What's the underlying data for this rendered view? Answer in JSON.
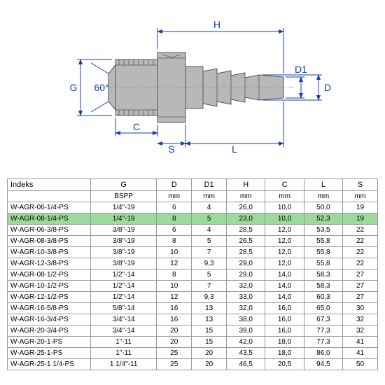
{
  "diagram": {
    "dims": {
      "G": "G",
      "H": "H",
      "C": "C",
      "S": "S",
      "L": "L",
      "D": "D",
      "D1": "D1",
      "angle": "60°"
    },
    "colors": {
      "dim": "#1a3db0",
      "part": "#b8b8b8",
      "partStroke": "#555555"
    }
  },
  "table": {
    "headers": [
      "Indeks",
      "G",
      "D",
      "D1",
      "H",
      "C",
      "L",
      "S"
    ],
    "units": [
      "",
      "BSPP",
      "mm",
      "mm",
      "mm",
      "mm",
      "mm",
      "mm"
    ],
    "highlight_index": 1,
    "rows": [
      [
        "W-AGR-06-1/4-PS",
        "1/4\"-19",
        "6",
        "4",
        "26,0",
        "10,0",
        "50,0",
        "19"
      ],
      [
        "W-AGR-08-1/4-PS",
        "1/4\"-19",
        "8",
        "5",
        "23,0",
        "10,0",
        "52,3",
        "19"
      ],
      [
        "W-AGR-06-3/8-PS",
        "3/8\"-19",
        "6",
        "4",
        "28,5",
        "12,0",
        "53,5",
        "22"
      ],
      [
        "W-AGR-08-3/8-PS",
        "3/8\"-19",
        "8",
        "5",
        "26,5",
        "12,0",
        "55,8",
        "22"
      ],
      [
        "W-AGR-10-3/8-PS",
        "3/8\"-19",
        "10",
        "7",
        "28,5",
        "12,0",
        "55,8",
        "22"
      ],
      [
        "W-AGR-12-3/8-PS",
        "3/8\"-19",
        "12",
        "9,3",
        "29,0",
        "12,0",
        "55,8",
        "22"
      ],
      [
        "W-AGR-08-1/2-PS",
        "1/2\"-14",
        "8",
        "5",
        "29,0",
        "14,0",
        "58,3",
        "27"
      ],
      [
        "W-AGR-10-1/2-PS",
        "1/2\"-14",
        "10",
        "7",
        "32,0",
        "14,0",
        "58,3",
        "27"
      ],
      [
        "W-AGR-12-1/2-PS",
        "1/2\"-14",
        "12",
        "9,3",
        "33,0",
        "14,0",
        "60,3",
        "27"
      ],
      [
        "W-AGR-16-5/8-PS",
        "5/8\"-14",
        "16",
        "13",
        "32,0",
        "16,0",
        "65,0",
        "30"
      ],
      [
        "W-AGR-16-3/4-PS",
        "3/4\"-14",
        "16",
        "13",
        "38,0",
        "16,0",
        "67,3",
        "32"
      ],
      [
        "W-AGR-20-3/4-PS",
        "3/4\"-14",
        "20",
        "15",
        "39,0",
        "16,0",
        "77,3",
        "32"
      ],
      [
        "W-AGR-20-1-PS",
        "1\"-11",
        "20",
        "15",
        "42,0",
        "18,0",
        "77,3",
        "41"
      ],
      [
        "W-AGR-25-1-PS",
        "1\"-11",
        "25",
        "20",
        "43,5",
        "18,0",
        "86,0",
        "41"
      ],
      [
        "W-AGR-25-1 1/4-PS",
        "1 1/4\"-11",
        "25",
        "20",
        "46,5",
        "20,5",
        "94,5",
        "50"
      ]
    ]
  }
}
